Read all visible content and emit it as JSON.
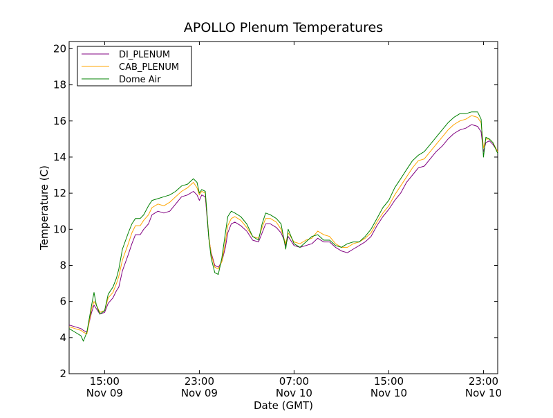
{
  "chart_data": {
    "type": "line",
    "title": "APOLLO Plenum Temperatures",
    "xlabel": "Date (GMT)",
    "ylabel": "Temperature (C)",
    "x_units": "hours since Nov 09 00:00 GMT",
    "xlim": [
      12.0,
      48.2
    ],
    "ylim": [
      2,
      20.4
    ],
    "grid": false,
    "legend_position": "top-left",
    "y_ticks": [
      {
        "value": 2,
        "label": "2"
      },
      {
        "value": 4,
        "label": "4"
      },
      {
        "value": 6,
        "label": "6"
      },
      {
        "value": 8,
        "label": "8"
      },
      {
        "value": 10,
        "label": "10"
      },
      {
        "value": 12,
        "label": "12"
      },
      {
        "value": 14,
        "label": "14"
      },
      {
        "value": 16,
        "label": "16"
      },
      {
        "value": 18,
        "label": "18"
      },
      {
        "value": 20,
        "label": "20"
      }
    ],
    "x_ticks": [
      {
        "value": 15,
        "time": "15:00",
        "date": "Nov 09"
      },
      {
        "value": 23,
        "time": "23:00",
        "date": "Nov 09"
      },
      {
        "value": 31,
        "time": "07:00",
        "date": "Nov 10"
      },
      {
        "value": 39,
        "time": "15:00",
        "date": "Nov 10"
      },
      {
        "value": 47,
        "time": "23:00",
        "date": "Nov 10"
      }
    ],
    "series": [
      {
        "name": "DI_PLENUM",
        "color": "#800080",
        "x": [
          12.0,
          12.5,
          13.0,
          13.2,
          13.5,
          13.9,
          14.1,
          14.3,
          14.6,
          15.0,
          15.3,
          15.7,
          16.0,
          16.2,
          16.5,
          17.0,
          17.3,
          17.6,
          18.0,
          18.3,
          18.7,
          19.0,
          19.5,
          20.0,
          20.5,
          21.0,
          21.5,
          22.0,
          22.5,
          22.8,
          23.0,
          23.2,
          23.5,
          23.8,
          24.0,
          24.3,
          24.6,
          24.9,
          25.2,
          25.4,
          25.7,
          26.0,
          26.5,
          27.0,
          27.5,
          28.0,
          28.3,
          28.6,
          29.0,
          29.5,
          29.9,
          30.1,
          30.3,
          30.5,
          31.0,
          31.5,
          32.0,
          32.5,
          33.0,
          33.5,
          34.0,
          34.5,
          35.0,
          35.5,
          36.0,
          36.5,
          37.0,
          37.5,
          38.0,
          38.5,
          39.0,
          39.5,
          40.0,
          40.5,
          41.0,
          41.5,
          42.0,
          42.5,
          43.0,
          43.5,
          44.0,
          44.5,
          45.0,
          45.5,
          46.0,
          46.5,
          46.8,
          47.0,
          47.2,
          47.5,
          47.8,
          48.2
        ],
        "y": [
          4.7,
          4.6,
          4.5,
          4.4,
          4.3,
          5.4,
          5.8,
          5.6,
          5.3,
          5.4,
          5.9,
          6.2,
          6.6,
          6.8,
          7.7,
          8.6,
          9.2,
          9.7,
          9.7,
          10.0,
          10.3,
          10.8,
          11.0,
          10.9,
          11.0,
          11.4,
          11.8,
          11.9,
          12.1,
          11.9,
          11.6,
          11.9,
          11.8,
          9.5,
          8.7,
          8.0,
          7.9,
          8.2,
          9.0,
          9.8,
          10.3,
          10.4,
          10.2,
          9.9,
          9.4,
          9.3,
          9.8,
          10.3,
          10.3,
          10.1,
          9.8,
          9.5,
          9.1,
          9.6,
          9.1,
          9.0,
          9.1,
          9.2,
          9.5,
          9.3,
          9.3,
          9.0,
          8.8,
          8.7,
          8.9,
          9.1,
          9.3,
          9.6,
          10.2,
          10.7,
          11.1,
          11.6,
          12.0,
          12.6,
          13.0,
          13.4,
          13.5,
          13.9,
          14.3,
          14.6,
          15.0,
          15.3,
          15.5,
          15.6,
          15.8,
          15.7,
          15.4,
          14.3,
          14.8,
          14.9,
          14.7,
          14.3
        ]
      },
      {
        "name": "CAB_PLENUM",
        "color": "#ffa500",
        "x": [
          12.0,
          12.5,
          13.0,
          13.2,
          13.5,
          13.9,
          14.1,
          14.3,
          14.6,
          15.0,
          15.3,
          15.7,
          16.0,
          16.2,
          16.5,
          17.0,
          17.3,
          17.6,
          18.0,
          18.3,
          18.7,
          19.0,
          19.5,
          20.0,
          20.5,
          21.0,
          21.5,
          22.0,
          22.5,
          22.8,
          23.0,
          23.2,
          23.5,
          23.8,
          24.0,
          24.3,
          24.6,
          24.9,
          25.2,
          25.4,
          25.7,
          26.0,
          26.5,
          27.0,
          27.5,
          28.0,
          28.3,
          28.6,
          29.0,
          29.5,
          29.9,
          30.1,
          30.3,
          30.5,
          31.0,
          31.5,
          32.0,
          32.5,
          33.0,
          33.5,
          34.0,
          34.5,
          35.0,
          35.5,
          36.0,
          36.5,
          37.0,
          37.5,
          38.0,
          38.5,
          39.0,
          39.5,
          40.0,
          40.5,
          41.0,
          41.5,
          42.0,
          42.5,
          43.0,
          43.5,
          44.0,
          44.5,
          45.0,
          45.5,
          46.0,
          46.5,
          46.8,
          47.0,
          47.2,
          47.5,
          47.8,
          48.2
        ],
        "y": [
          4.6,
          4.5,
          4.4,
          4.3,
          4.2,
          5.6,
          6.0,
          5.8,
          5.4,
          5.5,
          6.2,
          6.5,
          7.0,
          7.4,
          8.3,
          9.2,
          9.8,
          10.2,
          10.2,
          10.5,
          10.8,
          11.2,
          11.4,
          11.3,
          11.5,
          11.8,
          12.1,
          12.3,
          12.6,
          12.3,
          11.9,
          12.1,
          12.0,
          9.6,
          8.6,
          7.9,
          7.8,
          8.2,
          9.3,
          10.2,
          10.6,
          10.7,
          10.5,
          10.1,
          9.6,
          9.5,
          10.1,
          10.6,
          10.6,
          10.4,
          10.0,
          9.6,
          9.2,
          9.8,
          9.3,
          9.2,
          9.4,
          9.5,
          9.9,
          9.7,
          9.6,
          9.2,
          9.0,
          9.0,
          9.2,
          9.3,
          9.5,
          9.8,
          10.4,
          10.9,
          11.3,
          11.9,
          12.4,
          12.9,
          13.4,
          13.8,
          13.9,
          14.3,
          14.7,
          15.1,
          15.5,
          15.8,
          16.0,
          16.1,
          16.3,
          16.2,
          15.9,
          14.5,
          15.0,
          15.0,
          14.8,
          14.3
        ]
      },
      {
        "name": "Dome Air",
        "color": "#008000",
        "x": [
          12.0,
          12.5,
          13.0,
          13.2,
          13.5,
          13.9,
          14.1,
          14.3,
          14.6,
          15.0,
          15.3,
          15.7,
          16.0,
          16.2,
          16.5,
          17.0,
          17.3,
          17.6,
          18.0,
          18.3,
          18.7,
          19.0,
          19.5,
          20.0,
          20.5,
          21.0,
          21.5,
          22.0,
          22.5,
          22.8,
          23.0,
          23.2,
          23.5,
          23.8,
          24.0,
          24.3,
          24.6,
          24.9,
          25.2,
          25.4,
          25.7,
          26.0,
          26.5,
          27.0,
          27.5,
          28.0,
          28.3,
          28.6,
          29.0,
          29.5,
          29.9,
          30.1,
          30.3,
          30.5,
          31.0,
          31.5,
          32.0,
          32.5,
          33.0,
          33.5,
          34.0,
          34.5,
          35.0,
          35.5,
          36.0,
          36.5,
          37.0,
          37.5,
          38.0,
          38.5,
          39.0,
          39.5,
          40.0,
          40.5,
          41.0,
          41.5,
          42.0,
          42.5,
          43.0,
          43.5,
          44.0,
          44.5,
          45.0,
          45.5,
          46.0,
          46.5,
          46.8,
          47.0,
          47.2,
          47.5,
          47.8,
          48.2
        ],
        "y": [
          4.5,
          4.3,
          4.1,
          3.8,
          4.3,
          5.8,
          6.5,
          5.8,
          5.3,
          5.5,
          6.4,
          6.8,
          7.3,
          7.8,
          8.9,
          9.8,
          10.3,
          10.6,
          10.6,
          10.8,
          11.3,
          11.6,
          11.7,
          11.8,
          11.9,
          12.1,
          12.4,
          12.5,
          12.8,
          12.6,
          12.0,
          12.2,
          12.1,
          9.5,
          8.4,
          7.6,
          7.5,
          8.4,
          9.8,
          10.7,
          11.0,
          10.9,
          10.7,
          10.3,
          9.6,
          9.4,
          10.3,
          10.9,
          10.8,
          10.6,
          10.3,
          9.6,
          8.9,
          10.0,
          9.2,
          9.0,
          9.3,
          9.6,
          9.7,
          9.4,
          9.4,
          9.1,
          9.0,
          9.2,
          9.3,
          9.3,
          9.6,
          10.0,
          10.6,
          11.2,
          11.6,
          12.3,
          12.8,
          13.3,
          13.8,
          14.1,
          14.3,
          14.7,
          15.1,
          15.5,
          15.9,
          16.2,
          16.4,
          16.4,
          16.5,
          16.5,
          16.1,
          14.0,
          15.1,
          15.0,
          14.8,
          14.2
        ]
      }
    ]
  }
}
